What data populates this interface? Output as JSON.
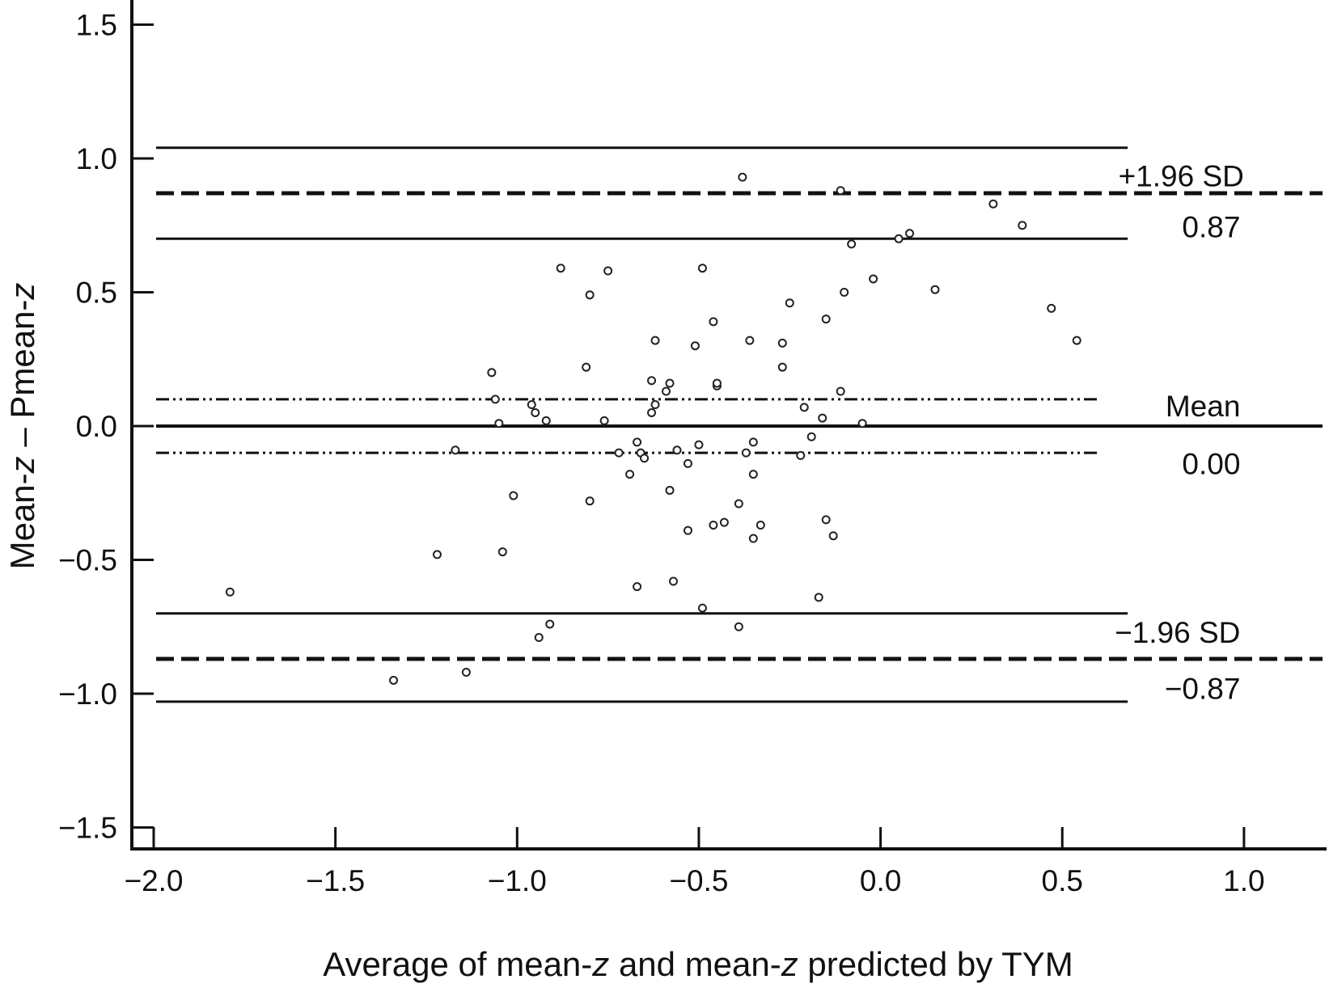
{
  "chart_data": {
    "type": "scatter",
    "title": "",
    "xlabel_parts": [
      {
        "text": "Average of mean-",
        "italic": false
      },
      {
        "text": "z",
        "italic": true
      },
      {
        "text": " and mean-",
        "italic": false
      },
      {
        "text": "z",
        "italic": true
      },
      {
        "text": " predicted by TYM",
        "italic": false
      }
    ],
    "ylabel_parts": [
      {
        "text": "Mean-",
        "italic": false
      },
      {
        "text": "z",
        "italic": true
      },
      {
        "text": " – Pmean-",
        "italic": false
      },
      {
        "text": "z",
        "italic": true
      }
    ],
    "xlim": [
      -2.06,
      1.06
    ],
    "ylim": [
      -1.59,
      1.59
    ],
    "x_ticks": [
      -2.0,
      -1.5,
      -1.0,
      -0.5,
      0.0,
      0.5,
      1.0
    ],
    "x_tick_labels": [
      "−2.0",
      "−1.5",
      "−1.0",
      "−0.5",
      "0.0",
      "0.5",
      "1.0"
    ],
    "y_ticks": [
      1.5,
      1.0,
      0.5,
      0.0,
      -0.5,
      -1.0,
      -1.5
    ],
    "y_tick_labels": [
      "1.5",
      "1.0",
      "0.5",
      "0.0",
      "−0.5",
      "−1.0",
      "−1.5"
    ],
    "grid": false,
    "reference_lines": [
      {
        "name": "upper-ci-high",
        "y": 1.04,
        "x_end": 0.68,
        "style": "solid"
      },
      {
        "name": "upper-loa",
        "y": 0.87,
        "x_end": 1.0,
        "style": "dashed"
      },
      {
        "name": "upper-ci-low",
        "y": 0.7,
        "x_end": 0.68,
        "style": "solid"
      },
      {
        "name": "mean-ci-high",
        "y": 0.1,
        "x_end": 0.6,
        "style": "dashdot"
      },
      {
        "name": "mean",
        "y": 0.0,
        "x_end": 1.0,
        "style": "solid-thick"
      },
      {
        "name": "mean-ci-low",
        "y": -0.1,
        "x_end": 0.6,
        "style": "dashdot"
      },
      {
        "name": "lower-ci-high",
        "y": -0.7,
        "x_end": 0.68,
        "style": "solid"
      },
      {
        "name": "lower-loa",
        "y": -0.87,
        "x_end": 1.0,
        "style": "dashed"
      },
      {
        "name": "lower-ci-low",
        "y": -1.03,
        "x_end": 0.68,
        "style": "solid"
      }
    ],
    "annotations": [
      {
        "text": "+1.96 SD",
        "x": 1.0,
        "y": 0.935
      },
      {
        "text": "0.87",
        "x": 0.99,
        "y": 0.745
      },
      {
        "text": "Mean",
        "x": 0.99,
        "y": 0.075
      },
      {
        "text": "0.00",
        "x": 0.99,
        "y": -0.14
      },
      {
        "text": "−1.96 SD",
        "x": 0.99,
        "y": -0.77
      },
      {
        "text": "−0.87",
        "x": 0.99,
        "y": -0.98
      }
    ],
    "points": [
      {
        "x": -1.79,
        "y": -0.62
      },
      {
        "x": -1.34,
        "y": -0.95
      },
      {
        "x": -1.22,
        "y": -0.48
      },
      {
        "x": -1.17,
        "y": -0.09
      },
      {
        "x": -1.14,
        "y": -0.92
      },
      {
        "x": -1.07,
        "y": 0.2
      },
      {
        "x": -1.06,
        "y": 0.1
      },
      {
        "x": -1.05,
        "y": 0.01
      },
      {
        "x": -1.04,
        "y": -0.47
      },
      {
        "x": -1.01,
        "y": -0.26
      },
      {
        "x": -0.96,
        "y": 0.08
      },
      {
        "x": -0.95,
        "y": 0.05
      },
      {
        "x": -0.94,
        "y": -0.79
      },
      {
        "x": -0.92,
        "y": 0.02
      },
      {
        "x": -0.91,
        "y": -0.74
      },
      {
        "x": -0.88,
        "y": 0.59
      },
      {
        "x": -0.81,
        "y": 0.22
      },
      {
        "x": -0.8,
        "y": 0.49
      },
      {
        "x": -0.8,
        "y": -0.28
      },
      {
        "x": -0.76,
        "y": 0.02
      },
      {
        "x": -0.75,
        "y": 0.58
      },
      {
        "x": -0.72,
        "y": -0.1
      },
      {
        "x": -0.69,
        "y": -0.18
      },
      {
        "x": -0.67,
        "y": -0.06
      },
      {
        "x": -0.67,
        "y": -0.6
      },
      {
        "x": -0.66,
        "y": -0.1
      },
      {
        "x": -0.65,
        "y": -0.12
      },
      {
        "x": -0.63,
        "y": 0.05
      },
      {
        "x": -0.63,
        "y": 0.17
      },
      {
        "x": -0.62,
        "y": 0.32
      },
      {
        "x": -0.62,
        "y": 0.08
      },
      {
        "x": -0.59,
        "y": 0.13
      },
      {
        "x": -0.58,
        "y": 0.16
      },
      {
        "x": -0.58,
        "y": -0.24
      },
      {
        "x": -0.57,
        "y": -0.58
      },
      {
        "x": -0.56,
        "y": -0.09
      },
      {
        "x": -0.53,
        "y": -0.14
      },
      {
        "x": -0.53,
        "y": -0.39
      },
      {
        "x": -0.51,
        "y": 0.3
      },
      {
        "x": -0.5,
        "y": -0.07
      },
      {
        "x": -0.49,
        "y": 0.59
      },
      {
        "x": -0.49,
        "y": -0.68
      },
      {
        "x": -0.46,
        "y": 0.39
      },
      {
        "x": -0.46,
        "y": -0.37
      },
      {
        "x": -0.45,
        "y": 0.15
      },
      {
        "x": -0.45,
        "y": 0.16
      },
      {
        "x": -0.43,
        "y": -0.36
      },
      {
        "x": -0.39,
        "y": -0.75
      },
      {
        "x": -0.39,
        "y": -0.29
      },
      {
        "x": -0.38,
        "y": 0.93
      },
      {
        "x": -0.37,
        "y": -0.1
      },
      {
        "x": -0.36,
        "y": 0.32
      },
      {
        "x": -0.35,
        "y": -0.18
      },
      {
        "x": -0.35,
        "y": -0.06
      },
      {
        "x": -0.35,
        "y": -0.42
      },
      {
        "x": -0.33,
        "y": -0.37
      },
      {
        "x": -0.27,
        "y": 0.31
      },
      {
        "x": -0.27,
        "y": 0.22
      },
      {
        "x": -0.25,
        "y": 0.46
      },
      {
        "x": -0.21,
        "y": 0.07
      },
      {
        "x": -0.19,
        "y": -0.04
      },
      {
        "x": -0.22,
        "y": -0.11
      },
      {
        "x": -0.17,
        "y": -0.64
      },
      {
        "x": -0.15,
        "y": 0.4
      },
      {
        "x": -0.16,
        "y": 0.03
      },
      {
        "x": -0.15,
        "y": -0.35
      },
      {
        "x": -0.13,
        "y": -0.41
      },
      {
        "x": -0.11,
        "y": 0.88
      },
      {
        "x": -0.11,
        "y": 0.13
      },
      {
        "x": -0.1,
        "y": 0.5
      },
      {
        "x": -0.08,
        "y": 0.68
      },
      {
        "x": -0.05,
        "y": 0.01
      },
      {
        "x": -0.02,
        "y": 0.55
      },
      {
        "x": 0.05,
        "y": 0.7
      },
      {
        "x": 0.08,
        "y": 0.72
      },
      {
        "x": 0.15,
        "y": 0.51
      },
      {
        "x": 0.31,
        "y": 0.83
      },
      {
        "x": 0.39,
        "y": 0.75
      },
      {
        "x": 0.47,
        "y": 0.44
      },
      {
        "x": 0.54,
        "y": 0.32
      }
    ]
  }
}
